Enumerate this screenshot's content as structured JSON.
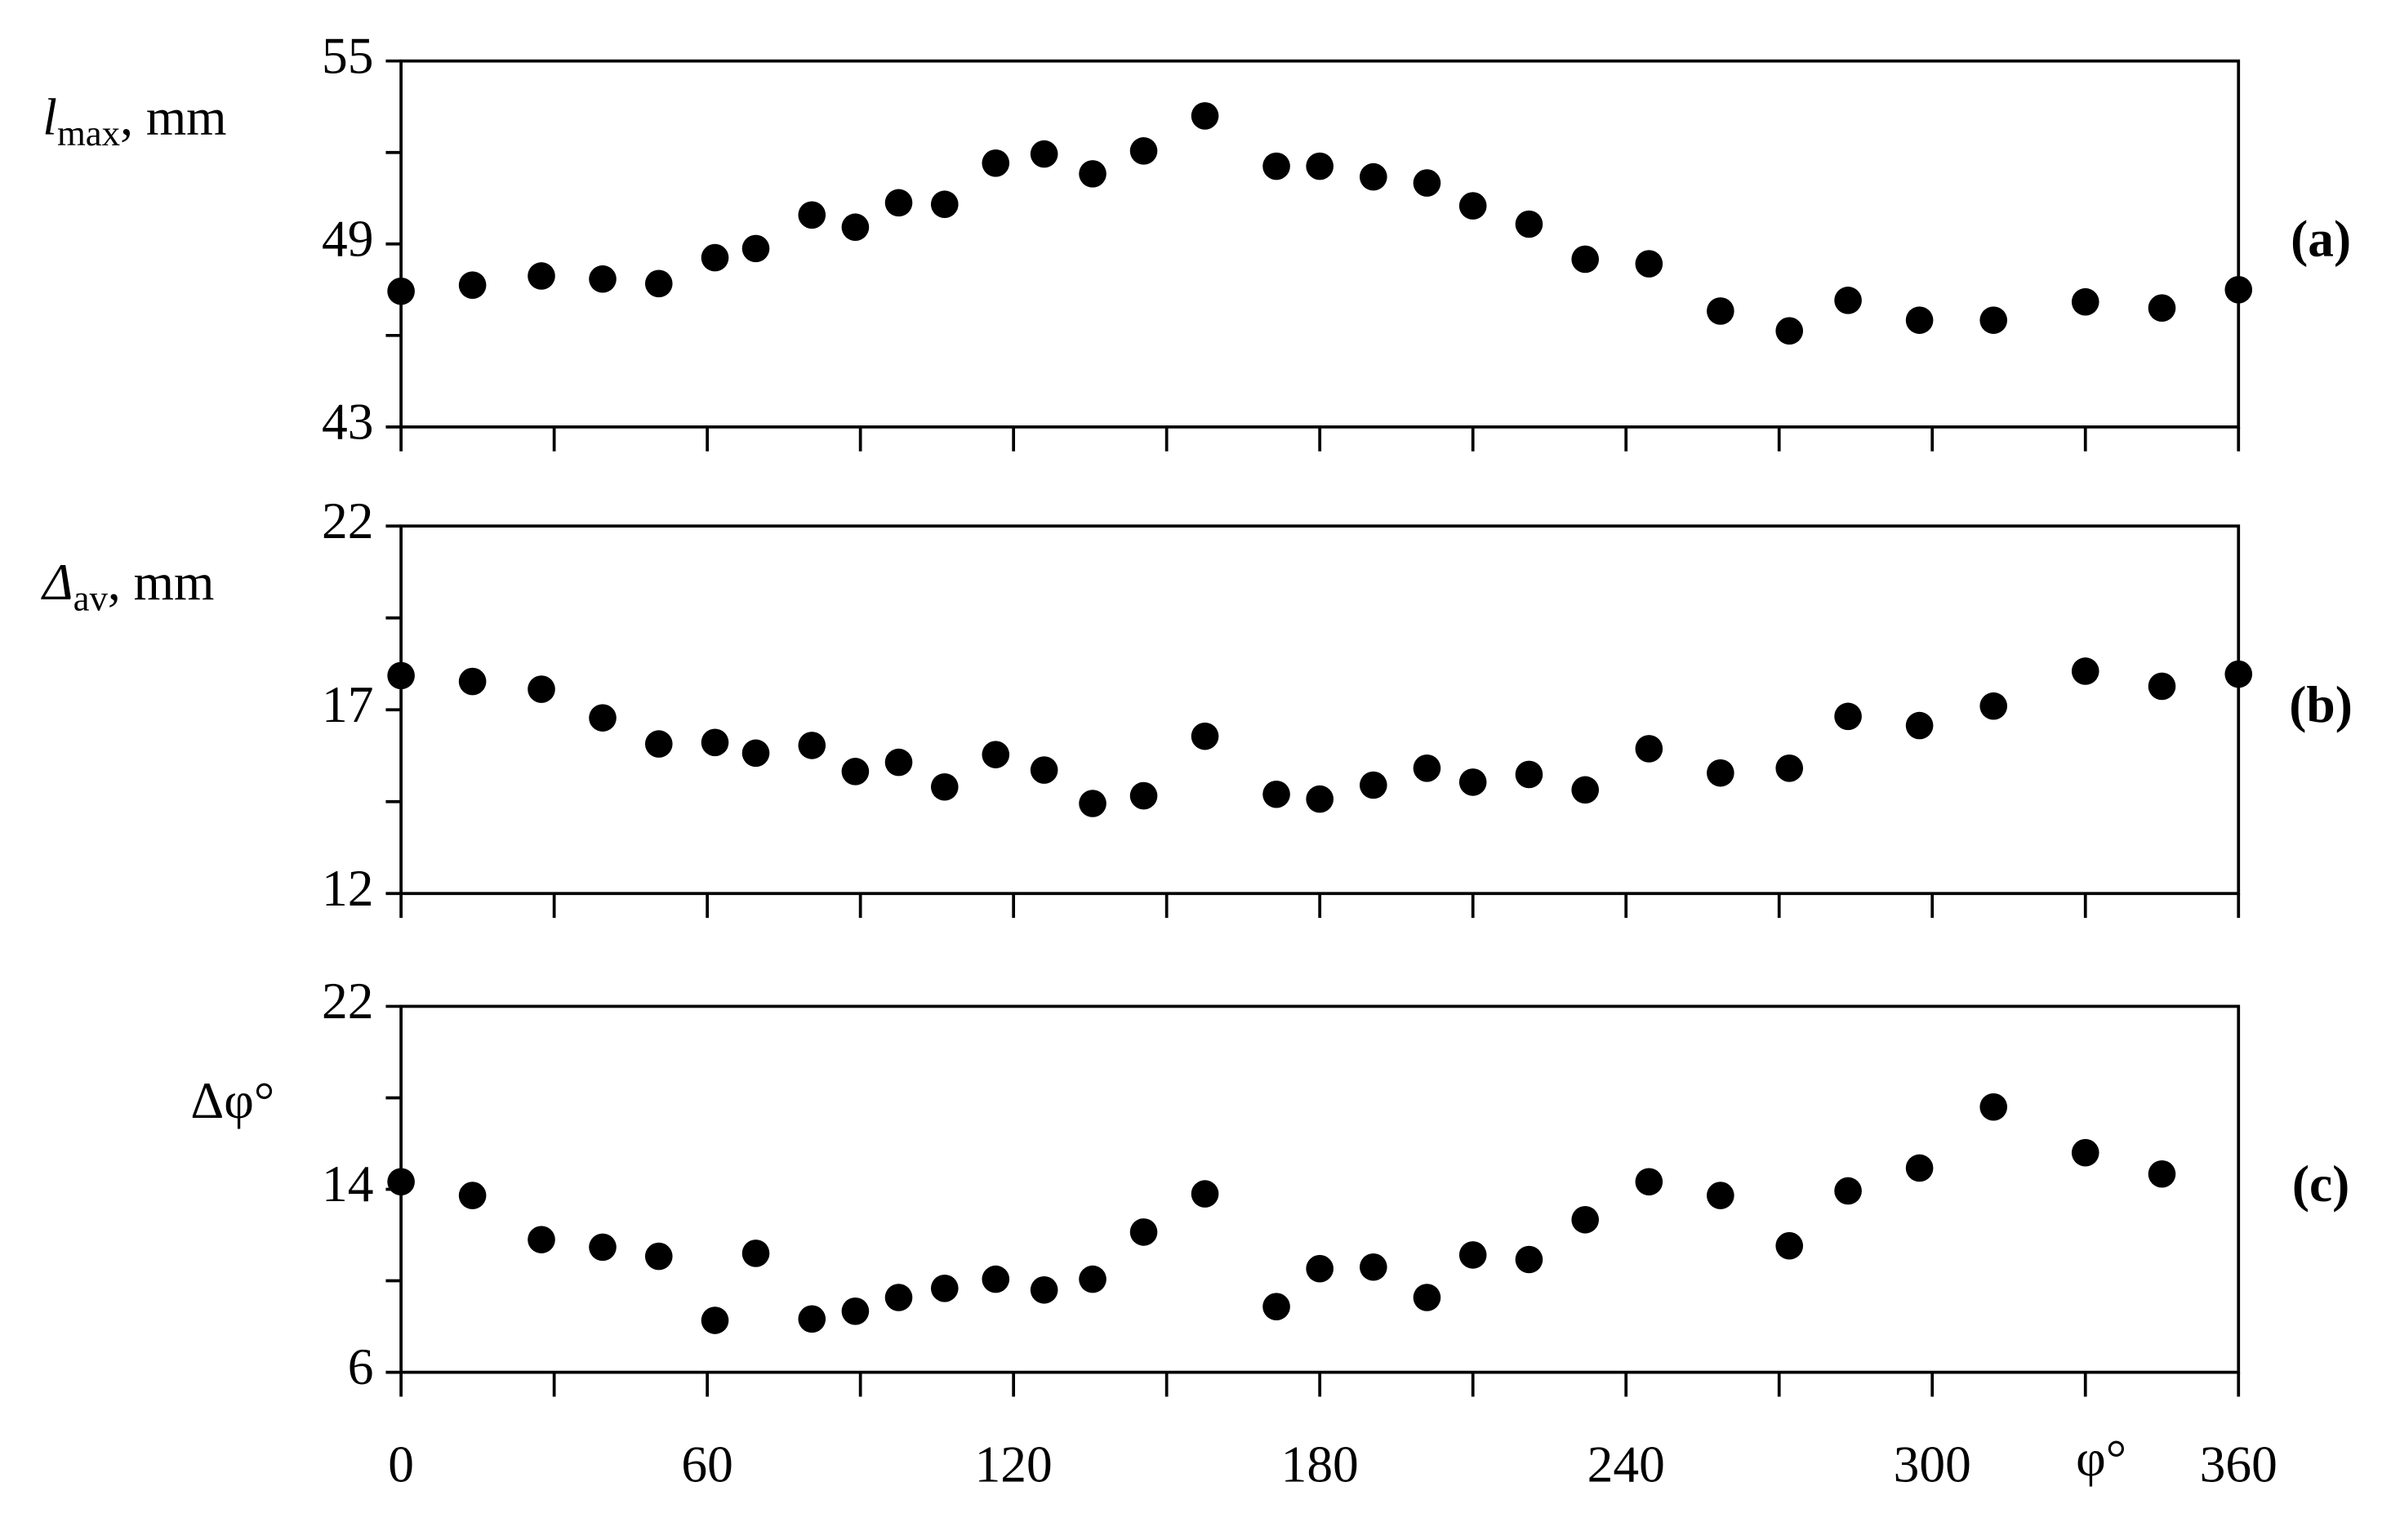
{
  "chart_data": [
    {
      "type": "scatter",
      "panel_label": "(a)",
      "ylabel": {
        "main": "l",
        "sub": "max",
        "rest": ", mm"
      },
      "color": "#000000",
      "x": [
        0,
        14,
        27.5,
        39.5,
        50.5,
        61.5,
        69.5,
        80.5,
        89,
        97.5,
        106.5,
        116.5,
        126,
        135.5,
        145.5,
        157.5,
        171.5,
        180,
        190.5,
        201,
        210,
        221,
        232,
        244.5,
        258.5,
        272,
        283.5,
        297.5,
        312,
        330,
        345,
        360
      ],
      "values": [
        47.45,
        47.65,
        47.95,
        47.85,
        47.7,
        48.55,
        48.85,
        49.95,
        49.55,
        50.35,
        50.3,
        51.65,
        51.95,
        51.3,
        52.05,
        53.2,
        51.55,
        51.55,
        51.2,
        51.0,
        50.25,
        49.65,
        48.5,
        48.35,
        46.8,
        46.15,
        47.15,
        46.5,
        46.5,
        47.1,
        46.9,
        47.5
      ],
      "xlim": [
        0,
        360
      ],
      "xticks": [
        0,
        60,
        120,
        180,
        240,
        300,
        360
      ],
      "minor_xticks": [
        30,
        90,
        150,
        210,
        270,
        330
      ],
      "show_xtick_labels": false,
      "ylim": [
        43,
        55
      ],
      "yticks": [
        43,
        49,
        55
      ],
      "minor_yticks": [
        46,
        52
      ]
    },
    {
      "type": "scatter",
      "panel_label": "(b)",
      "ylabel": {
        "main": "Δ",
        "sub": "av",
        "rest": ", mm"
      },
      "color": "#000000",
      "x": [
        0,
        14,
        27.5,
        39.5,
        50.5,
        61.5,
        69.5,
        80.5,
        89,
        97.5,
        106.5,
        116.5,
        126,
        135.5,
        145.5,
        157.5,
        171.5,
        180,
        190.5,
        201,
        210,
        221,
        232,
        244.5,
        258.5,
        272,
        283.5,
        297.5,
        312,
        330,
        345,
        360
      ],
      "values": [
        17.93,
        17.77,
        17.56,
        16.78,
        16.07,
        16.11,
        15.82,
        16.03,
        15.32,
        15.57,
        14.9,
        15.78,
        15.36,
        14.45,
        14.66,
        16.28,
        14.7,
        14.57,
        14.95,
        15.41,
        15.03,
        15.24,
        14.82,
        15.94,
        15.28,
        15.41,
        16.82,
        16.57,
        17.1,
        18.05,
        17.64,
        17.97
      ],
      "xlim": [
        0,
        360
      ],
      "xticks": [
        0,
        60,
        120,
        180,
        240,
        300,
        360
      ],
      "minor_xticks": [
        30,
        90,
        150,
        210,
        270,
        330
      ],
      "show_xtick_labels": false,
      "ylim": [
        12,
        22
      ],
      "yticks": [
        12,
        17,
        22
      ],
      "minor_yticks": [
        14.5,
        19.5
      ]
    },
    {
      "type": "scatter",
      "panel_label": "(c)",
      "ylabel": {
        "main": "Δφ°"
      },
      "xlabel": "φ°",
      "color": "#000000",
      "x": [
        0,
        14,
        27.5,
        39.5,
        50.5,
        61.5,
        69.5,
        80.5,
        89,
        97.5,
        106.5,
        116.5,
        126,
        135.5,
        145.5,
        157.5,
        171.5,
        180,
        190.5,
        201,
        210,
        221,
        232,
        244.5,
        258.5,
        272,
        283.5,
        297.5,
        312,
        330,
        345
      ],
      "values": [
        14.33,
        13.73,
        11.8,
        11.47,
        11.07,
        8.27,
        11.2,
        8.33,
        8.67,
        9.27,
        9.67,
        10.07,
        9.6,
        10.07,
        12.13,
        13.8,
        8.87,
        10.53,
        10.6,
        9.27,
        11.13,
        10.93,
        12.67,
        14.33,
        13.73,
        11.53,
        13.93,
        14.93,
        17.6,
        15.6,
        14.67
      ],
      "xlim": [
        0,
        360
      ],
      "xticks": [
        0,
        60,
        120,
        180,
        240,
        300,
        360
      ],
      "minor_xticks": [
        30,
        90,
        150,
        210,
        270,
        330
      ],
      "show_xtick_labels": true,
      "ylim": [
        6,
        22
      ],
      "yticks": [
        6,
        14,
        22
      ],
      "minor_yticks": [
        10,
        18
      ]
    }
  ]
}
